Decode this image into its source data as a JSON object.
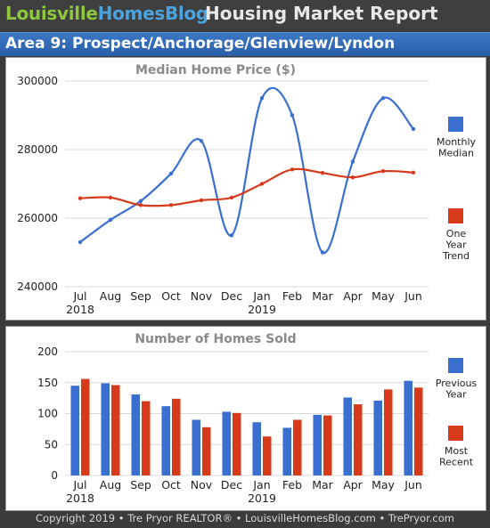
{
  "header": {
    "brand_part1": "Louisville",
    "brand_part2": "HomesBlog",
    "title": "Housing Market Report",
    "area": "Area 9: Prospect/Anchorage/Glenview/Lyndon"
  },
  "footer": "Copyright 2019 • Tre Pryor REALTOR® • LouisvilleHomesBlog.com • TrePryor.com",
  "colors": {
    "blue": "#3a6fd0",
    "red": "#d63a1a",
    "brand_green": "#8fc640",
    "brand_blue": "#4aa3df"
  },
  "chart_data": [
    {
      "type": "line",
      "title": "Median Home Price ($)",
      "categories": [
        "Jul",
        "Aug",
        "Sep",
        "Oct",
        "Nov",
        "Dec",
        "Jan",
        "Feb",
        "Mar",
        "Apr",
        "May",
        "Jun"
      ],
      "year_labels": [
        {
          "index": 0,
          "label": "2018"
        },
        {
          "index": 6,
          "label": "2019"
        }
      ],
      "ylim": [
        240000,
        300000
      ],
      "yticks": [
        "240000",
        "260000",
        "280000",
        "300000"
      ],
      "series": [
        {
          "name": "Monthly Median",
          "color": "#3a6fd0",
          "values": [
            253000,
            259500,
            265000,
            273000,
            282500,
            255000,
            295000,
            290000,
            250000,
            276500,
            295000,
            286000
          ]
        },
        {
          "name": "One Year Trend",
          "color": "#d63a1a",
          "values": [
            265800,
            266000,
            263800,
            263800,
            265200,
            266000,
            270000,
            274200,
            273200,
            271900,
            273700,
            273300
          ]
        }
      ],
      "legend": [
        {
          "lines": [
            "Monthly",
            "Median"
          ],
          "color": "#3a6fd0"
        },
        {
          "lines": [
            "One",
            "Year",
            "Trend"
          ],
          "color": "#d63a1a"
        }
      ]
    },
    {
      "type": "bar",
      "title": "Number of Homes Sold",
      "categories": [
        "Jul",
        "Aug",
        "Sep",
        "Oct",
        "Nov",
        "Dec",
        "Jan",
        "Feb",
        "Mar",
        "Apr",
        "May",
        "Jun"
      ],
      "year_labels": [
        {
          "index": 0,
          "label": "2018"
        },
        {
          "index": 6,
          "label": "2019"
        }
      ],
      "ylim": [
        0,
        200
      ],
      "yticks": [
        "0",
        "50",
        "100",
        "150",
        "200"
      ],
      "series": [
        {
          "name": "Previous Year",
          "color": "#3a6fd0",
          "values": [
            145,
            149,
            131,
            112,
            90,
            103,
            86,
            77,
            98,
            126,
            121,
            153
          ]
        },
        {
          "name": "Most Recent",
          "color": "#d63a1a",
          "values": [
            156,
            146,
            120,
            124,
            78,
            101,
            63,
            90,
            97,
            115,
            139,
            142
          ]
        }
      ],
      "legend": [
        {
          "lines": [
            "Previous",
            "Year"
          ],
          "color": "#3a6fd0"
        },
        {
          "lines": [
            "Most",
            "Recent"
          ],
          "color": "#d63a1a"
        }
      ]
    }
  ]
}
